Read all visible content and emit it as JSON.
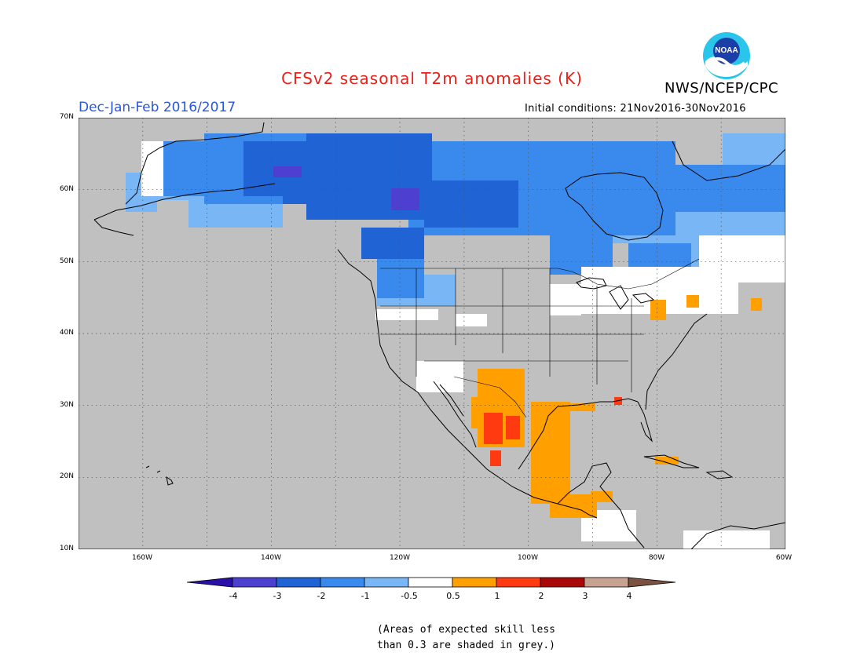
{
  "header": {
    "title": "CFSv2 seasonal T2m anomalies (K)",
    "agency": "NWS/NCEP/CPC",
    "logo_text": "NOAA",
    "period": "Dec-Jan-Feb 2016/2017",
    "initial_conditions": "Initial conditions: 21Nov2016-30Nov2016"
  },
  "map": {
    "lon_range": [
      -170,
      -60
    ],
    "lat_range": [
      10,
      70
    ],
    "grid": true,
    "lat_labels": [
      "70N",
      "60N",
      "50N",
      "40N",
      "30N",
      "20N",
      "10N"
    ],
    "lon_labels": [
      "160W",
      "140W",
      "120W",
      "100W",
      "80W",
      "60W"
    ],
    "no_skill_color": "#c0c0c0"
  },
  "legend": {
    "tick_labels": [
      "-4",
      "-3",
      "-2",
      "-1",
      "-0.5",
      "0.5",
      "1",
      "2",
      "3",
      "4"
    ],
    "colors": [
      "#2a0fa8",
      "#4d3fd0",
      "#1f63d4",
      "#3a8aee",
      "#78b6f5",
      "#ffffff",
      "#ff9f00",
      "#ff3a10",
      "#a80808",
      "#c8a290",
      "#7a5040"
    ]
  },
  "footnote": {
    "line1": "(Areas of expected skill less",
    "line2": "than 0.3 are shaded in grey.)"
  }
}
